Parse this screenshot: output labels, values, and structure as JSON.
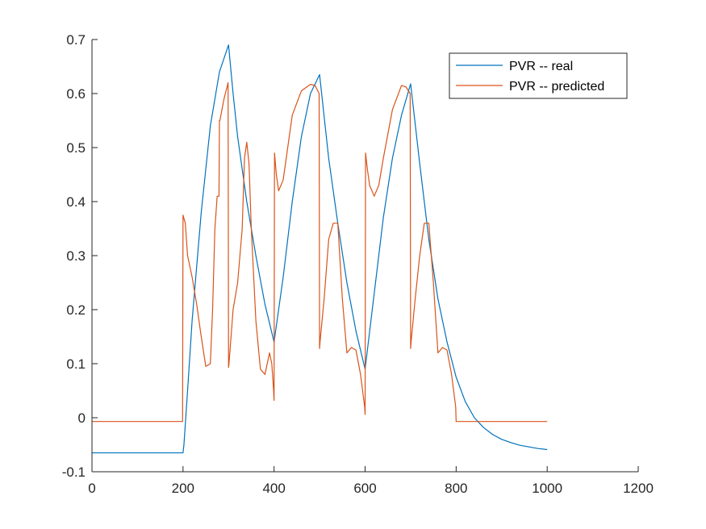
{
  "chart_data": {
    "type": "line",
    "title": "",
    "xlabel": "",
    "ylabel": "",
    "xlim": [
      0,
      1200
    ],
    "ylim": [
      -0.1,
      0.7
    ],
    "xticks": [
      0,
      200,
      400,
      600,
      800,
      1000,
      1200
    ],
    "yticks": [
      -0.1,
      0,
      0.1,
      0.2,
      0.3,
      0.4,
      0.5,
      0.6,
      0.7
    ],
    "xtick_labels": [
      "0",
      "200",
      "400",
      "600",
      "800",
      "1000",
      "1200"
    ],
    "ytick_labels": [
      "-0.1",
      "0",
      "0.1",
      "0.2",
      "0.3",
      "0.4",
      "0.5",
      "0.6",
      "0.7"
    ],
    "grid": false,
    "legend_position": "top-right",
    "series": [
      {
        "name": "PVR -- real",
        "color": "#0072BD",
        "x": [
          0,
          200,
          202,
          210,
          220,
          240,
          260,
          280,
          300,
          310,
          320,
          340,
          360,
          380,
          400,
          420,
          440,
          460,
          480,
          500,
          520,
          540,
          560,
          580,
          600,
          620,
          640,
          660,
          680,
          700,
          720,
          740,
          760,
          780,
          800,
          820,
          840,
          860,
          880,
          900,
          920,
          940,
          960,
          980,
          1000
        ],
        "y": [
          -0.065,
          -0.065,
          -0.05,
          0.05,
          0.18,
          0.38,
          0.54,
          0.64,
          0.69,
          0.6,
          0.52,
          0.4,
          0.3,
          0.21,
          0.14,
          0.26,
          0.4,
          0.52,
          0.6,
          0.635,
          0.48,
          0.36,
          0.25,
          0.16,
          0.09,
          0.23,
          0.37,
          0.48,
          0.56,
          0.618,
          0.47,
          0.33,
          0.22,
          0.14,
          0.075,
          0.03,
          0.0,
          -0.018,
          -0.031,
          -0.04,
          -0.046,
          -0.051,
          -0.054,
          -0.057,
          -0.059
        ]
      },
      {
        "name": "PVR -- predicted",
        "color": "#D95319",
        "x": [
          0,
          199,
          200,
          205,
          210,
          220,
          230,
          240,
          250,
          260,
          265,
          270,
          275,
          279,
          280,
          281,
          290,
          299,
          300,
          301,
          310,
          320,
          330,
          335,
          340,
          345,
          350,
          360,
          370,
          380,
          385,
          390,
          395,
          399,
          400,
          401,
          405,
          410,
          420,
          430,
          440,
          460,
          480,
          490,
          499,
          500,
          501,
          510,
          520,
          530,
          540,
          550,
          560,
          570,
          580,
          590,
          599,
          600,
          601,
          605,
          610,
          620,
          630,
          640,
          660,
          680,
          690,
          699,
          700,
          701,
          710,
          720,
          730,
          740,
          750,
          760,
          770,
          780,
          790,
          799,
          800,
          1000
        ],
        "y": [
          -0.007,
          -0.007,
          0.375,
          0.36,
          0.3,
          0.26,
          0.21,
          0.15,
          0.095,
          0.1,
          0.2,
          0.35,
          0.41,
          0.41,
          0.55,
          0.55,
          0.59,
          0.62,
          0.093,
          0.1,
          0.2,
          0.25,
          0.35,
          0.48,
          0.51,
          0.47,
          0.35,
          0.18,
          0.09,
          0.08,
          0.1,
          0.12,
          0.1,
          0.05,
          0.032,
          0.49,
          0.45,
          0.42,
          0.44,
          0.5,
          0.56,
          0.605,
          0.617,
          0.615,
          0.6,
          0.128,
          0.14,
          0.22,
          0.33,
          0.36,
          0.36,
          0.22,
          0.12,
          0.13,
          0.125,
          0.08,
          0.02,
          0.006,
          0.49,
          0.46,
          0.43,
          0.41,
          0.43,
          0.48,
          0.57,
          0.615,
          0.612,
          0.6,
          0.128,
          0.14,
          0.22,
          0.3,
          0.36,
          0.36,
          0.25,
          0.12,
          0.13,
          0.125,
          0.08,
          0.02,
          -0.007,
          -0.007
        ]
      }
    ]
  }
}
